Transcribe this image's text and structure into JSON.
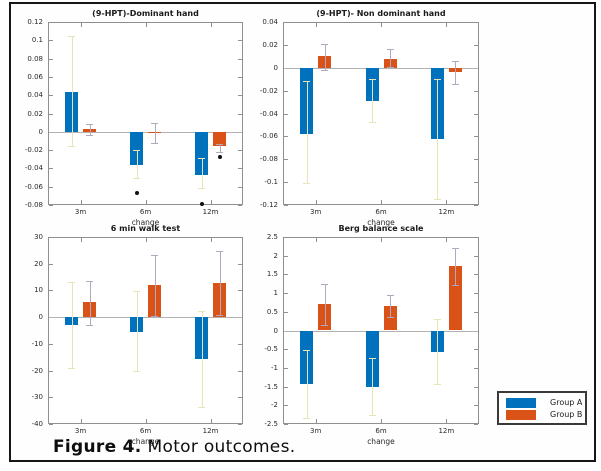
{
  "figure": {
    "caption_label": "Figure 4.",
    "caption_text": "Motor outcomes."
  },
  "legend": {
    "position": "bottom-right",
    "items": [
      {
        "label": "Group A",
        "color": "#0072BD"
      },
      {
        "label": "Group B",
        "color": "#D95319"
      }
    ]
  },
  "chart_data": [
    {
      "type": "bar",
      "title": "(9-HPT)-Dominant hand",
      "xlabel": "change",
      "categories": [
        "3m",
        "6m",
        "12m"
      ],
      "ylim": [
        -0.08,
        0.12
      ],
      "yticks": [
        "0.12",
        "0.1",
        "0.08",
        "0.06",
        "0.04",
        "0.02",
        "0",
        "-0.02",
        "-0.04",
        "-0.06",
        "-0.08"
      ],
      "grid": false,
      "series": [
        {
          "name": "Group A",
          "color": "#0072BD",
          "err_color": "#e8e4b6",
          "values": [
            0.044,
            -0.036,
            -0.047
          ],
          "err_lo": [
            -0.016,
            -0.051,
            -0.061
          ],
          "err_hi": [
            0.105,
            -0.02,
            -0.029
          ]
        },
        {
          "name": "Group B",
          "color": "#D95319",
          "err_color": "#b3a7bd",
          "values": [
            0.003,
            -0.001,
            -0.016
          ],
          "err_lo": [
            -0.003,
            -0.012,
            -0.022
          ],
          "err_hi": [
            0.008,
            0.01,
            -0.013
          ]
        }
      ],
      "outliers": [
        {
          "cat": 1,
          "series": 0,
          "value": -0.067
        },
        {
          "cat": 2,
          "series": 0,
          "value": -0.079
        },
        {
          "cat": 2,
          "series": 1,
          "value": -0.028
        }
      ]
    },
    {
      "type": "bar",
      "title": "(9-HPT)- Non dominant hand",
      "xlabel": "change",
      "categories": [
        "3m",
        "6m",
        "12m"
      ],
      "ylim": [
        -0.12,
        0.04
      ],
      "yticks": [
        "0.04",
        "0.02",
        "0",
        "-0.02",
        "-0.04",
        "-0.06",
        "-0.08",
        "-0.1",
        "-0.12"
      ],
      "grid": false,
      "series": [
        {
          "name": "Group A",
          "color": "#0072BD",
          "err_color": "#e8e4b6",
          "values": [
            -0.058,
            -0.029,
            -0.062
          ],
          "err_lo": [
            -0.101,
            -0.047,
            -0.115
          ],
          "err_hi": [
            -0.012,
            -0.01,
            -0.01
          ]
        },
        {
          "name": "Group B",
          "color": "#D95319",
          "err_color": "#b3a7bd",
          "values": [
            0.01,
            0.008,
            -0.004
          ],
          "err_lo": [
            -0.002,
            0.001,
            -0.014
          ],
          "err_hi": [
            0.021,
            0.016,
            0.006
          ]
        }
      ],
      "outliers": []
    },
    {
      "type": "bar",
      "title": "6 min walk test",
      "xlabel": "change",
      "categories": [
        "3m",
        "6m",
        "12m"
      ],
      "ylim": [
        -40,
        30
      ],
      "yticks": [
        "30",
        "20",
        "10",
        "0",
        "-10",
        "-20",
        "-30",
        "-40"
      ],
      "grid": false,
      "series": [
        {
          "name": "Group A",
          "color": "#0072BD",
          "err_color": "#e8e4b6",
          "values": [
            -3.1,
            -5.6,
            -15.8
          ],
          "err_lo": [
            -19,
            -20,
            -33.5
          ],
          "err_hi": [
            13,
            9.8,
            2.3
          ]
        },
        {
          "name": "Group B",
          "color": "#D95319",
          "err_color": "#b3a7bd",
          "values": [
            5.5,
            12,
            12.9
          ],
          "err_lo": [
            -2.8,
            0.3,
            0.8
          ],
          "err_hi": [
            13.4,
            23.3,
            24.8
          ]
        }
      ],
      "outliers": []
    },
    {
      "type": "bar",
      "title": "Berg balance scale",
      "xlabel": "change",
      "categories": [
        "3m",
        "6m",
        "12m"
      ],
      "ylim": [
        -2.5,
        2.5
      ],
      "yticks": [
        "2.5",
        "2",
        "1.5",
        "1",
        "0.5",
        "0",
        "-0.5",
        "-1",
        "-1.5",
        "-2",
        "-2.5"
      ],
      "grid": false,
      "series": [
        {
          "name": "Group A",
          "color": "#0072BD",
          "err_color": "#e8e4b6",
          "values": [
            -1.43,
            -1.51,
            -0.57
          ],
          "err_lo": [
            -2.34,
            -2.26,
            -1.43
          ],
          "err_hi": [
            -0.52,
            -0.74,
            0.31
          ]
        },
        {
          "name": "Group B",
          "color": "#D95319",
          "err_color": "#b3a7bd",
          "values": [
            0.71,
            0.66,
            1.72
          ],
          "err_lo": [
            0.15,
            0.36,
            1.22
          ],
          "err_hi": [
            1.24,
            0.95,
            2.2
          ]
        }
      ],
      "outliers": []
    }
  ]
}
